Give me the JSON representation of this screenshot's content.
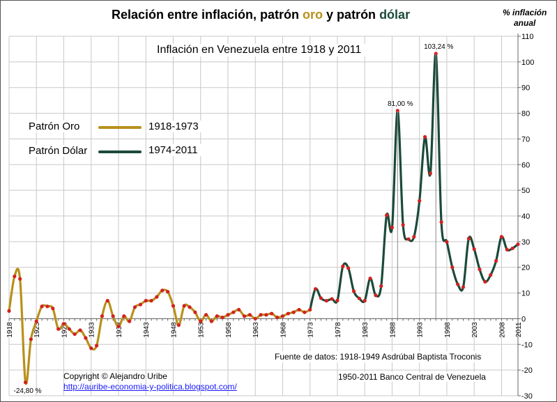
{
  "title": {
    "prefix": "Relación entre inflación, patrón ",
    "oro": "oro",
    "middle": " y patrón ",
    "dolar": "dólar"
  },
  "subtitle": "Inflación en Venezuela entre 1918 y 2011",
  "yaxis_title_line1": "% inflación",
  "yaxis_title_line2": "anual",
  "legend": {
    "oro_label": "Patrón Oro",
    "oro_years": "1918-1973",
    "dolar_label": "Patrón Dólar",
    "dolar_years": "1974-2011"
  },
  "source_line1": "Fuente de datos: 1918-1949 Asdrúbal Baptista Troconis",
  "source_line2": "1950-2011 Banco Central de Venezuela",
  "copyright": "Copyright © Alejandro Uribe",
  "blog_url": "http://auribe-economia-y-politica.blogspot.com/",
  "colors": {
    "oro": "#b8901a",
    "dolar": "#1c4a3a",
    "point": "#d42020",
    "grid": "#c8c8c8",
    "title_oro": "#b8901a",
    "title_dolar": "#1c4a3a"
  },
  "chart_data": {
    "type": "line",
    "ylabel": "% inflación anual",
    "ylim": [
      -30,
      110
    ],
    "yticks": [
      -30,
      -20,
      -10,
      0,
      10,
      20,
      30,
      40,
      50,
      60,
      70,
      80,
      90,
      100,
      110
    ],
    "xlim": [
      1918,
      2011
    ],
    "xticks": [
      1918,
      1923,
      1928,
      1933,
      1938,
      1943,
      1948,
      1953,
      1958,
      1963,
      1968,
      1973,
      1978,
      1983,
      1988,
      1993,
      1998,
      2003,
      2008,
      2011
    ],
    "series": [
      {
        "name": "Patrón Oro",
        "period": "1918-1973",
        "x": [
          1918,
          1919,
          1920,
          1921,
          1922,
          1923,
          1924,
          1925,
          1926,
          1927,
          1928,
          1929,
          1930,
          1931,
          1932,
          1933,
          1934,
          1935,
          1936,
          1937,
          1938,
          1939,
          1940,
          1941,
          1942,
          1943,
          1944,
          1945,
          1946,
          1947,
          1948,
          1949,
          1950,
          1951,
          1952,
          1953,
          1954,
          1955,
          1956,
          1957,
          1958,
          1959,
          1960,
          1961,
          1962,
          1963,
          1964,
          1965,
          1966,
          1967,
          1968,
          1969,
          1970,
          1971,
          1972,
          1973
        ],
        "values": [
          3,
          16.5,
          15.5,
          -24.8,
          -8,
          -1,
          4.8,
          4.8,
          4,
          -4,
          -2,
          -4,
          -6,
          -4.5,
          -7.5,
          -11.5,
          -10.5,
          1,
          7,
          1,
          -3,
          1,
          -1,
          4.5,
          5.5,
          7,
          7,
          8.5,
          11,
          10.5,
          5,
          -2.5,
          5,
          4.5,
          2.5,
          -1,
          1.5,
          -1,
          1,
          0.5,
          1.5,
          2.5,
          3.5,
          1,
          1.5,
          0,
          1.5,
          1.5,
          2,
          0.5,
          1,
          2,
          2.5,
          3.5,
          2.5,
          3.5
        ]
      },
      {
        "name": "Patrón Dólar",
        "period": "1974-2011",
        "x": [
          1973,
          1974,
          1975,
          1976,
          1977,
          1978,
          1979,
          1980,
          1981,
          1982,
          1983,
          1984,
          1985,
          1986,
          1987,
          1988,
          1989,
          1990,
          1991,
          1992,
          1993,
          1994,
          1995,
          1996,
          1997,
          1998,
          1999,
          2000,
          2001,
          2002,
          2003,
          2004,
          2005,
          2006,
          2007,
          2008,
          2009,
          2010,
          2011
        ],
        "values": [
          3.5,
          11.6,
          8,
          7,
          7.7,
          7.1,
          20.4,
          19.7,
          10.7,
          7.9,
          7,
          15.7,
          9.1,
          12.7,
          40.3,
          35.5,
          81,
          36.5,
          31,
          31.9,
          45.9,
          70.8,
          56.6,
          103.24,
          37.6,
          29.9,
          20,
          13.4,
          12.3,
          31.2,
          27.1,
          19.2,
          14.4,
          17,
          22.5,
          31.9,
          26.9,
          27.4,
          29
        ]
      }
    ],
    "annotations": [
      {
        "text": "-24,80 %",
        "x": 1921,
        "y": -24.8
      },
      {
        "text": "81,00 %",
        "x": 1989,
        "y": 81
      },
      {
        "text": "103,24 %",
        "x": 1996,
        "y": 103.24
      }
    ]
  }
}
